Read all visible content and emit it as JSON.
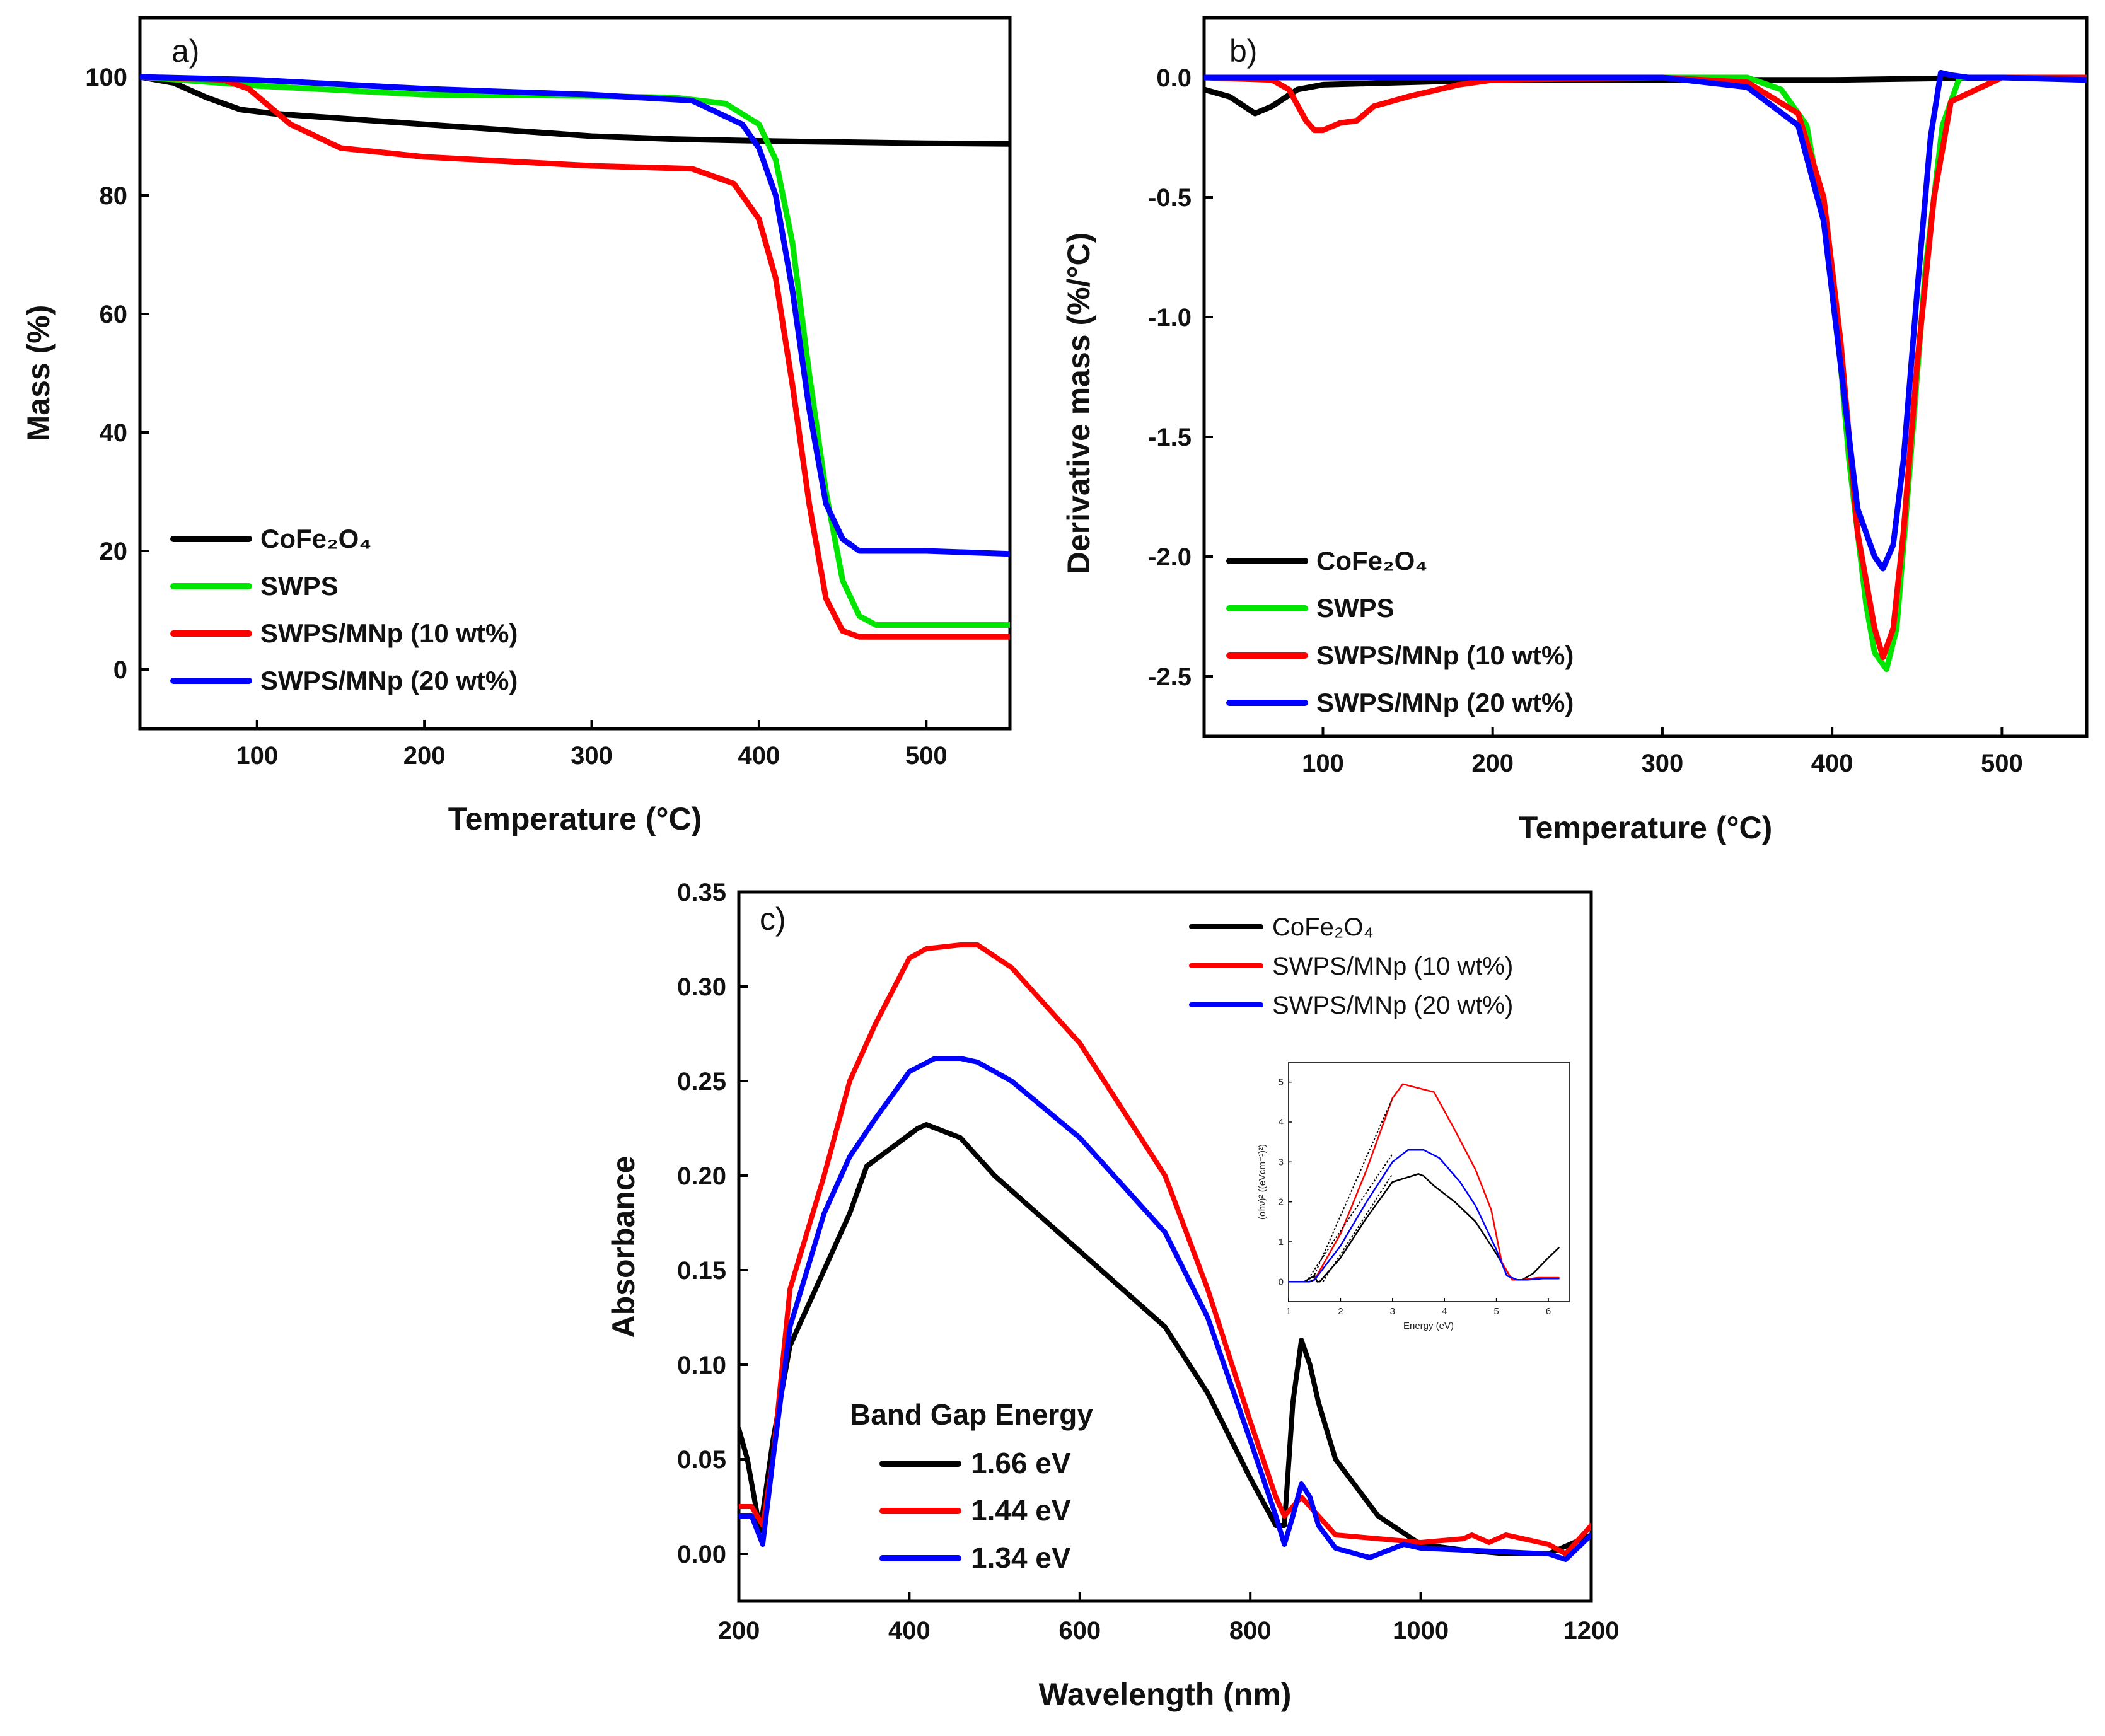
{
  "chart_data": [
    {
      "panel_label": "a)",
      "type": "line",
      "xlabel": "Temperature (°C)",
      "ylabel": "Mass (%)",
      "xlim": [
        30,
        550
      ],
      "ylim": [
        -10,
        110
      ],
      "xticks": [
        100,
        200,
        300,
        400,
        500
      ],
      "yticks": [
        0,
        20,
        40,
        60,
        80,
        100
      ],
      "legend_position": "bottom-left",
      "series": [
        {
          "name": "CoFe₂O₄",
          "color": "#000000",
          "x": [
            30,
            50,
            70,
            90,
            110,
            150,
            200,
            250,
            300,
            350,
            400,
            450,
            500,
            550
          ],
          "y": [
            100,
            99,
            96.5,
            94.5,
            93.8,
            93,
            92,
            91,
            90,
            89.5,
            89.2,
            89,
            88.8,
            88.7
          ]
        },
        {
          "name": "SWPS",
          "color": "#00e600",
          "x": [
            30,
            100,
            200,
            300,
            350,
            380,
            400,
            410,
            420,
            430,
            440,
            450,
            460,
            470,
            500,
            550
          ],
          "y": [
            100,
            98.5,
            97,
            96.8,
            96.5,
            95.5,
            92,
            86,
            72,
            50,
            30,
            15,
            9,
            7.5,
            7.5,
            7.5
          ]
        },
        {
          "name": "SWPS/MNp (10 wt%)",
          "color": "#ff0000",
          "x": [
            30,
            80,
            95,
            120,
            150,
            200,
            300,
            360,
            385,
            400,
            410,
            420,
            430,
            440,
            450,
            460,
            500,
            550
          ],
          "y": [
            100,
            99.5,
            98,
            92,
            88,
            86.5,
            85,
            84.5,
            82,
            76,
            66,
            48,
            28,
            12,
            6.5,
            5.5,
            5.5,
            5.5
          ]
        },
        {
          "name": "SWPS/MNp (20 wt%)",
          "color": "#0000ff",
          "x": [
            30,
            100,
            200,
            300,
            360,
            390,
            400,
            410,
            420,
            430,
            440,
            450,
            460,
            500,
            550
          ],
          "y": [
            100,
            99.5,
            98,
            97,
            96,
            92,
            88,
            80,
            64,
            44,
            28,
            22,
            20,
            20,
            19.5
          ]
        }
      ]
    },
    {
      "panel_label": "b)",
      "type": "line",
      "xlabel": "Temperature (°C)",
      "ylabel": "Derivative mass (%/°C)",
      "xlim": [
        30,
        550
      ],
      "ylim": [
        -2.75,
        0.25
      ],
      "xticks": [
        100,
        200,
        300,
        400,
        500
      ],
      "yticks": [
        0.0,
        -0.5,
        -1.0,
        -1.5,
        -2.0,
        -2.5
      ],
      "legend_position": "bottom-left",
      "series": [
        {
          "name": "CoFe₂O₄",
          "color": "#000000",
          "x": [
            30,
            45,
            60,
            70,
            85,
            100,
            150,
            200,
            300,
            400,
            500,
            550
          ],
          "y": [
            -0.05,
            -0.08,
            -0.15,
            -0.12,
            -0.05,
            -0.03,
            -0.02,
            -0.01,
            -0.01,
            -0.01,
            0,
            0
          ]
        },
        {
          "name": "SWPS",
          "color": "#00e600",
          "x": [
            30,
            200,
            300,
            350,
            370,
            385,
            400,
            410,
            420,
            425,
            432,
            438,
            445,
            455,
            465,
            475,
            500,
            550
          ],
          "y": [
            0,
            0,
            0,
            0,
            -0.05,
            -0.2,
            -0.8,
            -1.6,
            -2.2,
            -2.4,
            -2.47,
            -2.3,
            -1.7,
            -0.8,
            -0.2,
            0,
            0,
            0
          ]
        },
        {
          "name": "SWPS/MNp (10 wt%)",
          "color": "#ff0000",
          "x": [
            30,
            70,
            80,
            90,
            95,
            100,
            110,
            120,
            130,
            150,
            180,
            200,
            300,
            350,
            380,
            395,
            405,
            415,
            425,
            430,
            436,
            442,
            450,
            460,
            470,
            500,
            550
          ],
          "y": [
            0,
            -0.01,
            -0.05,
            -0.18,
            -0.22,
            -0.22,
            -0.19,
            -0.18,
            -0.12,
            -0.08,
            -0.03,
            -0.01,
            0,
            -0.02,
            -0.15,
            -0.5,
            -1.1,
            -1.9,
            -2.3,
            -2.42,
            -2.3,
            -1.9,
            -1.2,
            -0.5,
            -0.1,
            0,
            0
          ]
        },
        {
          "name": "SWPS/MNp (20 wt%)",
          "color": "#0000ff",
          "x": [
            30,
            200,
            300,
            350,
            380,
            395,
            405,
            415,
            425,
            430,
            436,
            442,
            450,
            458,
            464,
            470,
            480,
            500,
            550
          ],
          "y": [
            0,
            0,
            0,
            -0.04,
            -0.2,
            -0.6,
            -1.2,
            -1.8,
            -2.0,
            -2.05,
            -1.95,
            -1.6,
            -0.9,
            -0.25,
            0.02,
            0.01,
            0,
            0,
            -0.01
          ]
        }
      ]
    },
    {
      "panel_label": "c)",
      "type": "line",
      "xlabel": "Wavelength (nm)",
      "ylabel": "Absorbance",
      "xlim": [
        200,
        1200
      ],
      "ylim": [
        -0.025,
        0.35
      ],
      "xticks": [
        200,
        400,
        600,
        800,
        1000,
        1200
      ],
      "yticks": [
        0.0,
        0.05,
        0.1,
        0.15,
        0.2,
        0.25,
        0.3,
        0.35
      ],
      "legend_position": "top-right",
      "series": [
        {
          "name": "CoFe₂O₄",
          "color": "#000000",
          "x": [
            200,
            210,
            225,
            240,
            260,
            300,
            330,
            350,
            380,
            410,
            420,
            460,
            500,
            600,
            700,
            750,
            800,
            830,
            840,
            850,
            860,
            870,
            880,
            900,
            950,
            1000,
            1050,
            1100,
            1150,
            1200
          ],
          "y": [
            0.066,
            0.05,
            0.012,
            0.06,
            0.11,
            0.15,
            0.18,
            0.205,
            0.215,
            0.225,
            0.227,
            0.22,
            0.2,
            0.16,
            0.12,
            0.085,
            0.04,
            0.015,
            0.015,
            0.08,
            0.113,
            0.1,
            0.08,
            0.05,
            0.02,
            0.005,
            0.002,
            0.0,
            0.0,
            0.01
          ]
        },
        {
          "name": "SWPS/MNp (10 wt%)",
          "color": "#ff0000",
          "x": [
            200,
            215,
            228,
            240,
            260,
            280,
            300,
            330,
            360,
            400,
            420,
            460,
            480,
            520,
            600,
            700,
            750,
            800,
            830,
            840,
            850,
            860,
            870,
            880,
            900,
            950,
            1000,
            1050,
            1060,
            1080,
            1100,
            1120,
            1150,
            1170,
            1200
          ],
          "y": [
            0.025,
            0.025,
            0.015,
            0.05,
            0.14,
            0.17,
            0.2,
            0.25,
            0.28,
            0.315,
            0.32,
            0.322,
            0.322,
            0.31,
            0.27,
            0.2,
            0.14,
            0.07,
            0.03,
            0.02,
            0.025,
            0.03,
            0.025,
            0.02,
            0.01,
            0.008,
            0.006,
            0.008,
            0.01,
            0.006,
            0.01,
            0.008,
            0.005,
            0.0,
            0.015
          ]
        },
        {
          "name": "SWPS/MNp (20 wt%)",
          "color": "#0000ff",
          "x": [
            200,
            215,
            228,
            240,
            260,
            280,
            300,
            330,
            360,
            400,
            430,
            460,
            480,
            520,
            600,
            700,
            750,
            800,
            830,
            840,
            850,
            860,
            870,
            880,
            900,
            940,
            980,
            1000,
            1050,
            1100,
            1150,
            1170,
            1200
          ],
          "y": [
            0.02,
            0.02,
            0.005,
            0.05,
            0.12,
            0.15,
            0.18,
            0.21,
            0.23,
            0.255,
            0.262,
            0.262,
            0.26,
            0.25,
            0.22,
            0.17,
            0.125,
            0.06,
            0.02,
            0.005,
            0.02,
            0.037,
            0.03,
            0.015,
            0.003,
            -0.002,
            0.005,
            0.003,
            0.002,
            0.001,
            0.0,
            -0.003,
            0.01
          ]
        }
      ],
      "band_gap": {
        "title": "Band Gap Energy",
        "entries": [
          {
            "label": "1.66 eV",
            "color": "#000000"
          },
          {
            "label": "1.44 eV",
            "color": "#ff0000"
          },
          {
            "label": "1.34 eV",
            "color": "#0000ff"
          }
        ]
      },
      "inset": {
        "type": "line",
        "xlabel": "Energy (eV)",
        "ylabel": "(αhν)² ((eVcm⁻¹)²)",
        "xlim": [
          1,
          6.4
        ],
        "ylim": [
          -0.5,
          5.5
        ],
        "xticks": [
          1,
          2,
          3,
          4,
          5,
          6
        ],
        "yticks": [
          0,
          1,
          2,
          3,
          4,
          5
        ],
        "series": [
          {
            "color": "#000000",
            "x": [
              1.0,
              1.3,
              1.5,
              1.55,
              1.6,
              2.0,
              2.5,
              3.0,
              3.5,
              3.6,
              3.8,
              4.2,
              4.6,
              5.0,
              5.3,
              5.5,
              5.7,
              6.0,
              6.2
            ],
            "y": [
              0,
              0,
              0.15,
              0,
              0,
              0.6,
              1.6,
              2.5,
              2.7,
              2.65,
              2.4,
              2.0,
              1.5,
              0.7,
              0.05,
              0.05,
              0.2,
              0.6,
              0.85
            ]
          },
          {
            "color": "#ff0000",
            "x": [
              1.0,
              1.4,
              1.5,
              2.0,
              2.5,
              3.0,
              3.2,
              3.5,
              3.8,
              4.2,
              4.6,
              4.9,
              5.1,
              5.3,
              5.5,
              5.8,
              6.2
            ],
            "y": [
              0,
              0,
              0.05,
              1.2,
              2.8,
              4.6,
              4.95,
              4.85,
              4.75,
              3.8,
              2.8,
              1.8,
              0.5,
              0.05,
              0.05,
              0.1,
              0.1
            ]
          },
          {
            "color": "#0000ff",
            "x": [
              1.0,
              1.4,
              1.5,
              2.0,
              2.5,
              3.0,
              3.3,
              3.6,
              3.9,
              4.3,
              4.6,
              5.0,
              5.2,
              5.4,
              5.6,
              5.9,
              6.2
            ],
            "y": [
              0,
              0,
              0.05,
              0.9,
              2.0,
              3.0,
              3.3,
              3.3,
              3.1,
              2.5,
              1.9,
              0.8,
              0.15,
              0.05,
              0.05,
              0.08,
              0.08
            ]
          }
        ]
      }
    }
  ]
}
